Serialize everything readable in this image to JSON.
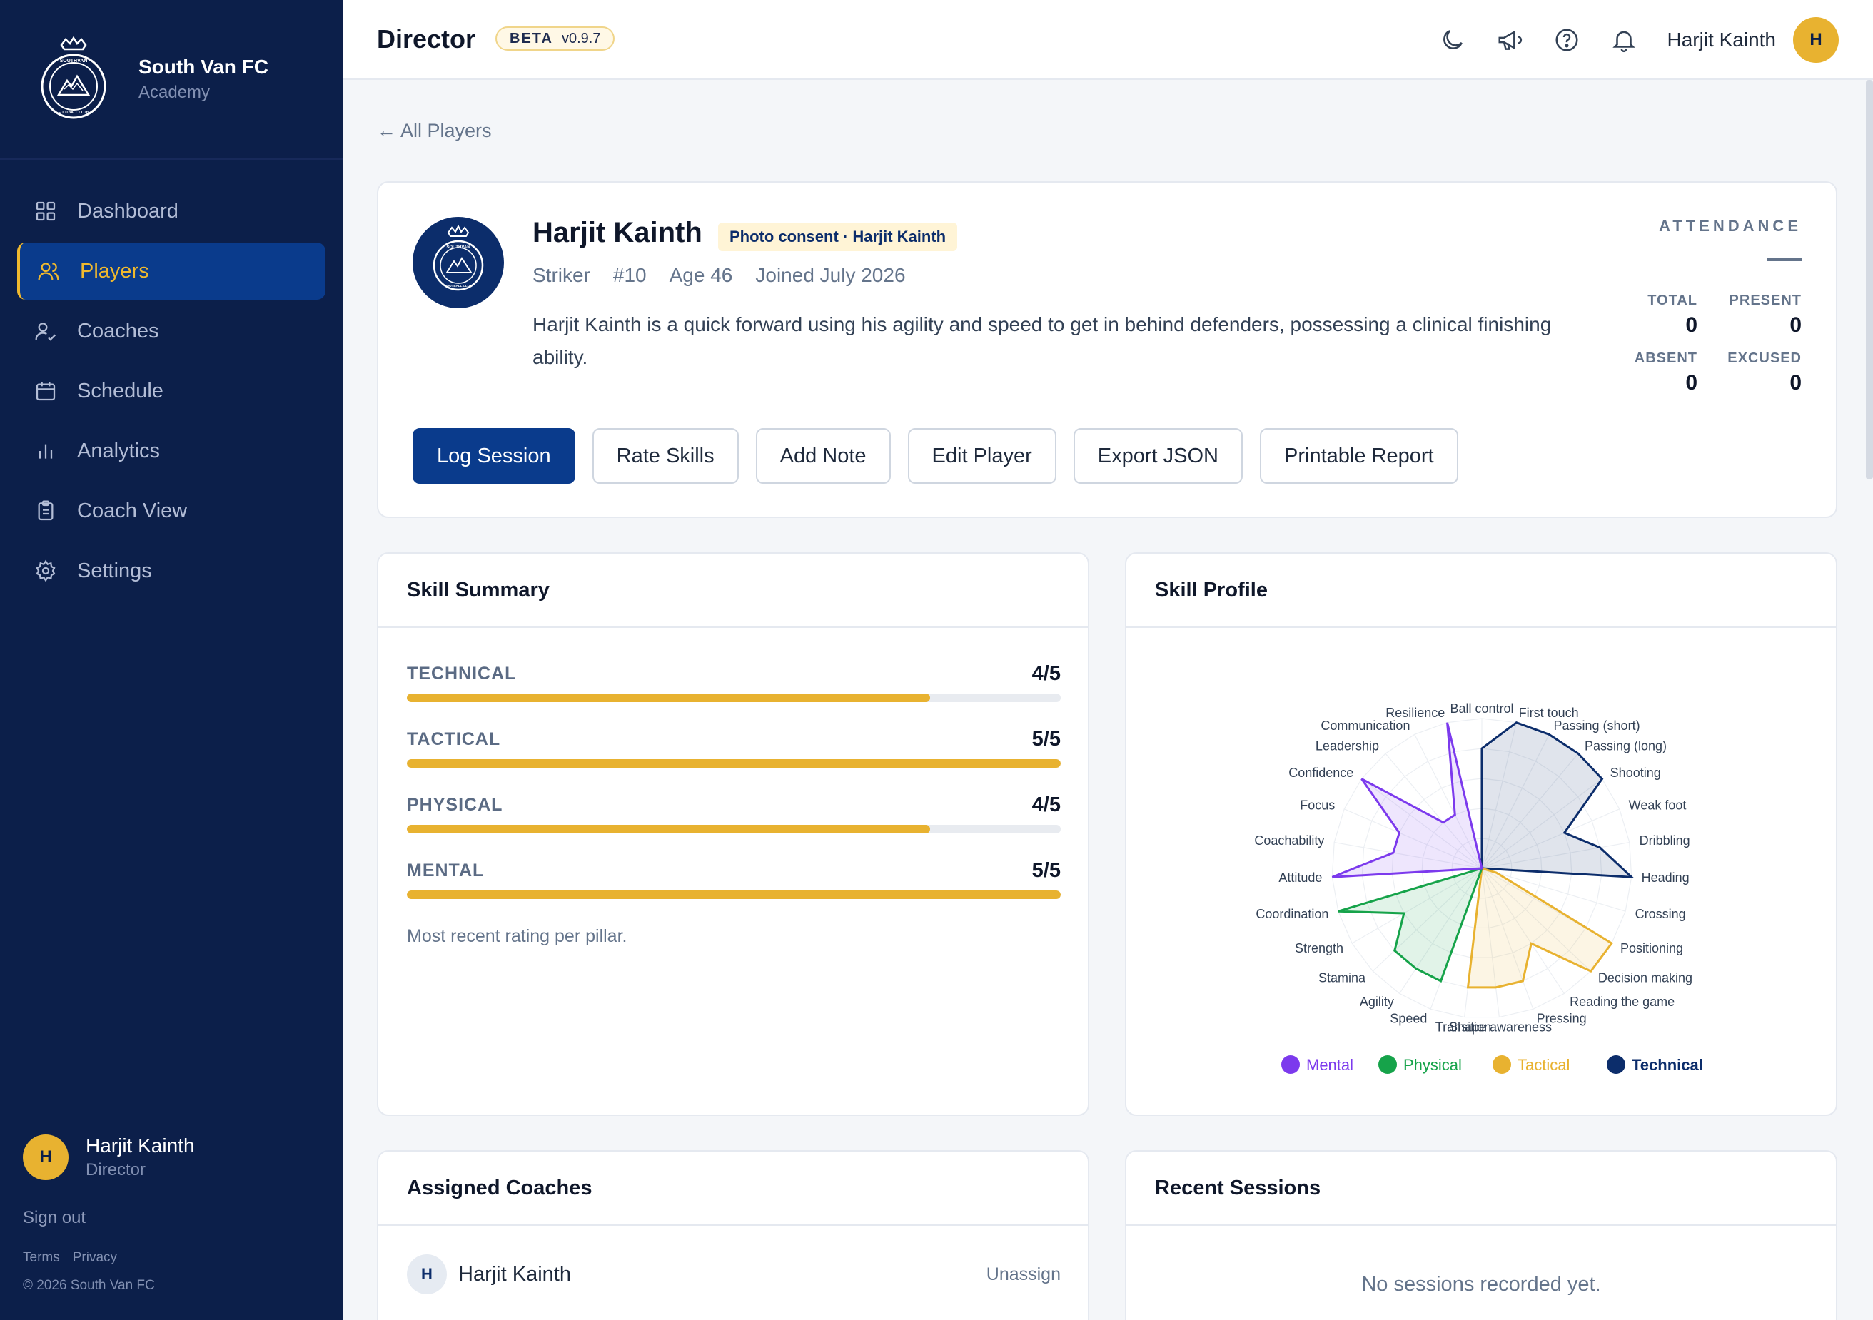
{
  "brand": {
    "name": "South Van FC",
    "sub": "Academy",
    "logo_text": "SOUTHVAN FOOTBALL CLUB"
  },
  "nav": [
    {
      "label": "Dashboard",
      "icon": "grid-icon"
    },
    {
      "label": "Players",
      "icon": "users-icon",
      "active": true
    },
    {
      "label": "Coaches",
      "icon": "coach-icon"
    },
    {
      "label": "Schedule",
      "icon": "calendar-icon"
    },
    {
      "label": "Analytics",
      "icon": "bar-chart-icon"
    },
    {
      "label": "Coach View",
      "icon": "clipboard-icon"
    },
    {
      "label": "Settings",
      "icon": "gear-icon"
    }
  ],
  "sidebar_user": {
    "initial": "H",
    "name": "Harjit Kainth",
    "role": "Director",
    "signout": "Sign out",
    "terms": "Terms",
    "privacy": "Privacy",
    "copyright": "© 2026 South Van FC"
  },
  "topbar": {
    "title": "Director",
    "beta": "BETA",
    "version": "v0.9.7",
    "user_name": "Harjit Kainth",
    "user_initial": "H"
  },
  "back_link": "← All Players",
  "player": {
    "name": "Harjit Kainth",
    "consent": "Photo consent · Harjit Kainth",
    "position": "Striker",
    "number": "#10",
    "age": "Age 46",
    "joined": "Joined July 2026",
    "bio": "Harjit Kainth is a quick forward using his agility and speed to get in behind defenders, possessing a clinical finishing ability."
  },
  "actions": {
    "log_session": "Log Session",
    "rate_skills": "Rate Skills",
    "add_note": "Add Note",
    "edit_player": "Edit Player",
    "export_json": "Export JSON",
    "printable_report": "Printable Report"
  },
  "attendance": {
    "title": "ATTENDANCE",
    "total_label": "TOTAL",
    "total": "0",
    "present_label": "PRESENT",
    "present": "0",
    "absent_label": "ABSENT",
    "absent": "0",
    "excused_label": "EXCUSED",
    "excused": "0"
  },
  "skill_summary": {
    "title": "Skill Summary",
    "note": "Most recent rating per pillar.",
    "rows": [
      {
        "label": "TECHNICAL",
        "score_text": "4/5",
        "fraction": 0.8
      },
      {
        "label": "TACTICAL",
        "score_text": "5/5",
        "fraction": 1.0
      },
      {
        "label": "PHYSICAL",
        "score_text": "4/5",
        "fraction": 0.8
      },
      {
        "label": "MENTAL",
        "score_text": "5/5",
        "fraction": 1.0
      }
    ]
  },
  "skill_profile": {
    "title": "Skill Profile",
    "legend": [
      {
        "name": "Mental",
        "color": "#7c3aed"
      },
      {
        "name": "Physical",
        "color": "#16a34a"
      },
      {
        "name": "Tactical",
        "color": "#e8b230"
      },
      {
        "name": "Technical",
        "color": "#0c2d6b"
      }
    ]
  },
  "chart_data": {
    "type": "radar",
    "max": 5,
    "axes": [
      "Ball control",
      "First touch",
      "Passing (short)",
      "Passing (long)",
      "Shooting",
      "Weak foot",
      "Dribbling",
      "Heading",
      "Crossing",
      "Positioning",
      "Decision making",
      "Reading the game",
      "Pressing",
      "Shape awareness",
      "Transition",
      "Speed",
      "Agility",
      "Stamina",
      "Strength",
      "Coordination",
      "Attitude",
      "Coachability",
      "Focus",
      "Confidence",
      "Leadership",
      "Communication",
      "Resilience"
    ],
    "series": [
      {
        "name": "Technical",
        "color": "#0c2d6b",
        "values": {
          "Ball control": 4,
          "First touch": 5,
          "Passing (short)": 5,
          "Passing (long)": 5,
          "Shooting": 5,
          "Weak foot": 3,
          "Dribbling": 4,
          "Heading": 5
        }
      },
      {
        "name": "Tactical",
        "color": "#e8b230",
        "values": {
          "Crossing": 0.5,
          "Positioning": 5,
          "Decision making": 5,
          "Reading the game": 3,
          "Pressing": 4,
          "Shape awareness": 4,
          "Transition": 4
        }
      },
      {
        "name": "Physical",
        "color": "#16a34a",
        "values": {
          "Speed": 4,
          "Agility": 4,
          "Stamina": 4,
          "Strength": 3,
          "Coordination": 5
        }
      },
      {
        "name": "Mental",
        "color": "#7c3aed",
        "values": {
          "Attitude": 5,
          "Coachability": 3,
          "Focus": 3,
          "Confidence": 5,
          "Leadership": 2,
          "Communication": 2,
          "Resilience": 5
        }
      }
    ]
  },
  "coaches": {
    "title": "Assigned Coaches",
    "items": [
      {
        "initial": "H",
        "name": "Harjit Kainth",
        "action": "Unassign"
      }
    ]
  },
  "sessions": {
    "title": "Recent Sessions",
    "empty": "No sessions recorded yet."
  }
}
